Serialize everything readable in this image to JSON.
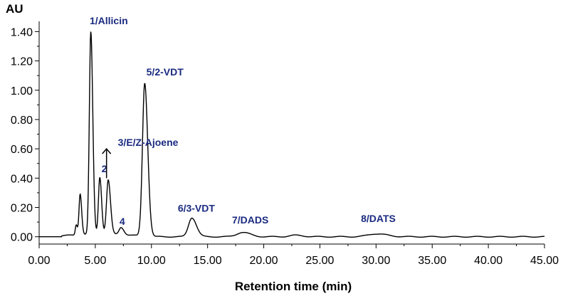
{
  "chart_data": {
    "type": "line",
    "title": "",
    "ylabel": "AU",
    "xlabel": "Retention time (min)",
    "xlim": [
      0,
      45
    ],
    "ylim": [
      -0.05,
      1.47
    ],
    "x_ticks": [
      0,
      5,
      10,
      15,
      20,
      25,
      30,
      35,
      40,
      45
    ],
    "x_tick_labels": [
      "0.00",
      "5.00",
      "10.00",
      "15.00",
      "20.00",
      "25.00",
      "30.00",
      "35.00",
      "40.00",
      "45.00"
    ],
    "y_ticks": [
      0,
      0.2,
      0.4,
      0.6,
      0.8,
      1.0,
      1.2,
      1.4
    ],
    "y_tick_labels": [
      "0.00",
      "0.20",
      "0.40",
      "0.60",
      "0.80",
      "1.00",
      "1.20",
      "1.40"
    ],
    "baseline": 0.0,
    "peaks": [
      {
        "name": "1/Allicin",
        "rt": 4.6,
        "height": 1.38,
        "width": 0.13
      },
      {
        "name": "2",
        "rt": 5.4,
        "height": 0.39,
        "width": 0.12
      },
      {
        "name": "3/E/Z-Ajoene",
        "rt": 6.15,
        "height": 0.37,
        "width": 0.15
      },
      {
        "name": "4",
        "rt": 7.3,
        "height": 0.05,
        "width": 0.18
      },
      {
        "name": "5/2-VDT",
        "rt": 9.4,
        "height": 1.05,
        "width": 0.2
      },
      {
        "name": "6/3-VDT",
        "rt": 13.6,
        "height": 0.13,
        "width": 0.3
      },
      {
        "name": "7/DADS",
        "rt": 18.1,
        "height": 0.03,
        "width": 0.5
      },
      {
        "name": "8/DATS",
        "rt": 30.0,
        "height": 0.02,
        "width": 0.7
      }
    ],
    "minor_peaks": [
      {
        "rt": 3.65,
        "height": 0.28,
        "width": 0.1
      },
      {
        "rt": 3.3,
        "height": 0.07,
        "width": 0.08
      },
      {
        "rt": 22.8,
        "height": 0.01,
        "width": 0.5
      }
    ],
    "annotations": [
      {
        "text": "1/Allicin",
        "x": 6.2,
        "y": 1.45
      },
      {
        "text": "5/2-VDT",
        "x": 11.2,
        "y": 1.1
      },
      {
        "text": "3/E/Z-Ajoene",
        "x": 9.7,
        "y": 0.62
      },
      {
        "text": "2",
        "x": 5.8,
        "y": 0.44
      },
      {
        "text": "4",
        "x": 7.4,
        "y": 0.08
      },
      {
        "text": "6/3-VDT",
        "x": 14.0,
        "y": 0.17
      },
      {
        "text": "7/DADS",
        "x": 18.8,
        "y": 0.09
      },
      {
        "text": "8/DATS",
        "x": 30.2,
        "y": 0.1
      }
    ],
    "arrow": {
      "x": 6.0,
      "from_y": 0.4,
      "to_y": 0.6
    }
  }
}
